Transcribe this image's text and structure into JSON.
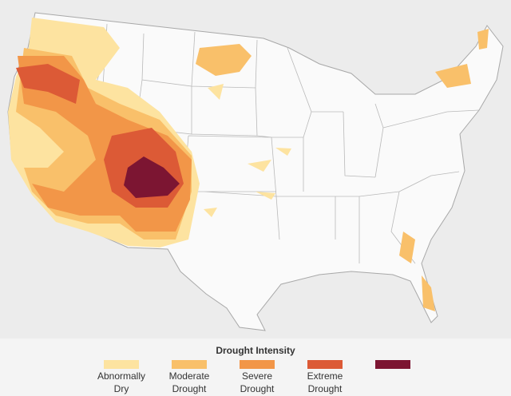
{
  "legend": {
    "title": "Drought Intensity",
    "items": [
      {
        "label": [
          "Abnormally",
          "Dry"
        ],
        "color": "#fde3a0"
      },
      {
        "label": [
          "Moderate",
          "Drought"
        ],
        "color": "#f9c06a"
      },
      {
        "label": [
          "Severe",
          "Drought"
        ],
        "color": "#f29648"
      },
      {
        "label": [
          "Extreme",
          "Drought"
        ],
        "color": "#dc5a36"
      },
      {
        "color": "#7c1532"
      }
    ]
  }
}
